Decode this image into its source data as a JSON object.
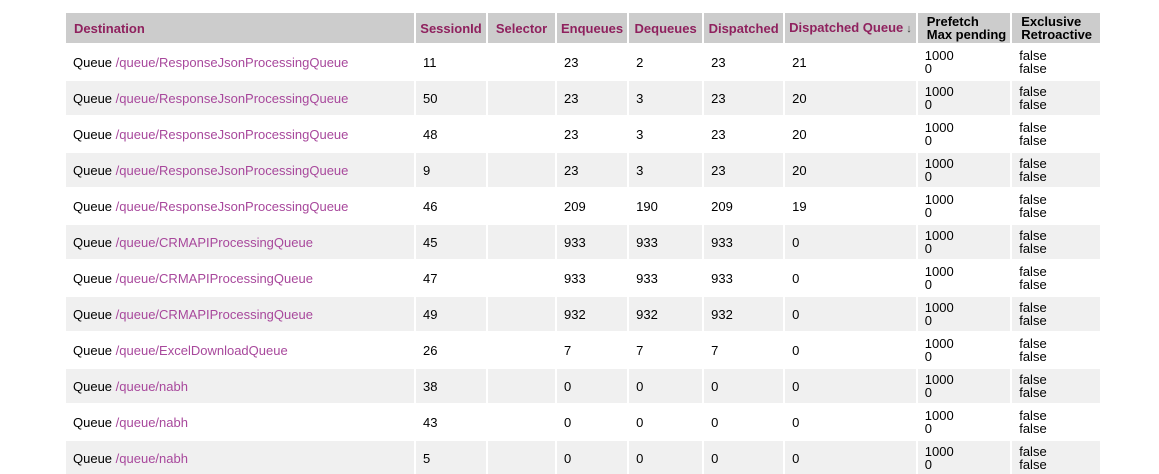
{
  "colors": {
    "header_bg": "#cccccc",
    "header_text": "#8f215e",
    "link": "#a8489c",
    "row_alt_bg": "#f0f0f0",
    "text": "#000000"
  },
  "table": {
    "columns": [
      {
        "key": "destination",
        "label": "Destination",
        "sortable": true
      },
      {
        "key": "session-id",
        "label": "SessionId",
        "sortable": true
      },
      {
        "key": "selector",
        "label": "Selector",
        "sortable": true
      },
      {
        "key": "enqueues",
        "label": "Enqueues",
        "sortable": true
      },
      {
        "key": "dequeues",
        "label": "Dequeues",
        "sortable": true
      },
      {
        "key": "dispatched",
        "label": "Dispatched",
        "sortable": true
      },
      {
        "key": "dispatched-queue",
        "label": "Dispatched Queue",
        "sortable": true,
        "sort_indicator": "↓"
      },
      {
        "key": "prefetch-max-pending",
        "lines": [
          "Prefetch",
          "Max pending"
        ],
        "sortable": false
      },
      {
        "key": "exclusive-retroactive",
        "lines": [
          "Exclusive",
          "Retroactive"
        ],
        "sortable": false
      }
    ],
    "rows": [
      {
        "destination": {
          "prefix": "Queue",
          "link": "/queue/ResponseJsonProcessingQueue"
        },
        "session_id": "11",
        "selector": "",
        "enqueues": "23",
        "dequeues": "2",
        "dispatched": "23",
        "dispatched_queue": "21",
        "prefetch": [
          "1000",
          "0"
        ],
        "exclusive": [
          "false",
          "false"
        ]
      },
      {
        "destination": {
          "prefix": "Queue",
          "link": "/queue/ResponseJsonProcessingQueue"
        },
        "session_id": "50",
        "selector": "",
        "enqueues": "23",
        "dequeues": "3",
        "dispatched": "23",
        "dispatched_queue": "20",
        "prefetch": [
          "1000",
          "0"
        ],
        "exclusive": [
          "false",
          "false"
        ]
      },
      {
        "destination": {
          "prefix": "Queue",
          "link": "/queue/ResponseJsonProcessingQueue"
        },
        "session_id": "48",
        "selector": "",
        "enqueues": "23",
        "dequeues": "3",
        "dispatched": "23",
        "dispatched_queue": "20",
        "prefetch": [
          "1000",
          "0"
        ],
        "exclusive": [
          "false",
          "false"
        ]
      },
      {
        "destination": {
          "prefix": "Queue",
          "link": "/queue/ResponseJsonProcessingQueue"
        },
        "session_id": "9",
        "selector": "",
        "enqueues": "23",
        "dequeues": "3",
        "dispatched": "23",
        "dispatched_queue": "20",
        "prefetch": [
          "1000",
          "0"
        ],
        "exclusive": [
          "false",
          "false"
        ]
      },
      {
        "destination": {
          "prefix": "Queue",
          "link": "/queue/ResponseJsonProcessingQueue"
        },
        "session_id": "46",
        "selector": "",
        "enqueues": "209",
        "dequeues": "190",
        "dispatched": "209",
        "dispatched_queue": "19",
        "prefetch": [
          "1000",
          "0"
        ],
        "exclusive": [
          "false",
          "false"
        ]
      },
      {
        "destination": {
          "prefix": "Queue",
          "link": "/queue/CRMAPIProcessingQueue"
        },
        "session_id": "45",
        "selector": "",
        "enqueues": "933",
        "dequeues": "933",
        "dispatched": "933",
        "dispatched_queue": "0",
        "prefetch": [
          "1000",
          "0"
        ],
        "exclusive": [
          "false",
          "false"
        ]
      },
      {
        "destination": {
          "prefix": "Queue",
          "link": "/queue/CRMAPIProcessingQueue"
        },
        "session_id": "47",
        "selector": "",
        "enqueues": "933",
        "dequeues": "933",
        "dispatched": "933",
        "dispatched_queue": "0",
        "prefetch": [
          "1000",
          "0"
        ],
        "exclusive": [
          "false",
          "false"
        ]
      },
      {
        "destination": {
          "prefix": "Queue",
          "link": "/queue/CRMAPIProcessingQueue"
        },
        "session_id": "49",
        "selector": "",
        "enqueues": "932",
        "dequeues": "932",
        "dispatched": "932",
        "dispatched_queue": "0",
        "prefetch": [
          "1000",
          "0"
        ],
        "exclusive": [
          "false",
          "false"
        ]
      },
      {
        "destination": {
          "prefix": "Queue",
          "link": "/queue/ExcelDownloadQueue"
        },
        "session_id": "26",
        "selector": "",
        "enqueues": "7",
        "dequeues": "7",
        "dispatched": "7",
        "dispatched_queue": "0",
        "prefetch": [
          "1000",
          "0"
        ],
        "exclusive": [
          "false",
          "false"
        ]
      },
      {
        "destination": {
          "prefix": "Queue",
          "link": "/queue/nabh"
        },
        "session_id": "38",
        "selector": "",
        "enqueues": "0",
        "dequeues": "0",
        "dispatched": "0",
        "dispatched_queue": "0",
        "prefetch": [
          "1000",
          "0"
        ],
        "exclusive": [
          "false",
          "false"
        ]
      },
      {
        "destination": {
          "prefix": "Queue",
          "link": "/queue/nabh"
        },
        "session_id": "43",
        "selector": "",
        "enqueues": "0",
        "dequeues": "0",
        "dispatched": "0",
        "dispatched_queue": "0",
        "prefetch": [
          "1000",
          "0"
        ],
        "exclusive": [
          "false",
          "false"
        ]
      },
      {
        "destination": {
          "prefix": "Queue",
          "link": "/queue/nabh"
        },
        "session_id": "5",
        "selector": "",
        "enqueues": "0",
        "dequeues": "0",
        "dispatched": "0",
        "dispatched_queue": "0",
        "prefetch": [
          "1000",
          "0"
        ],
        "exclusive": [
          "false",
          "false"
        ]
      }
    ]
  }
}
